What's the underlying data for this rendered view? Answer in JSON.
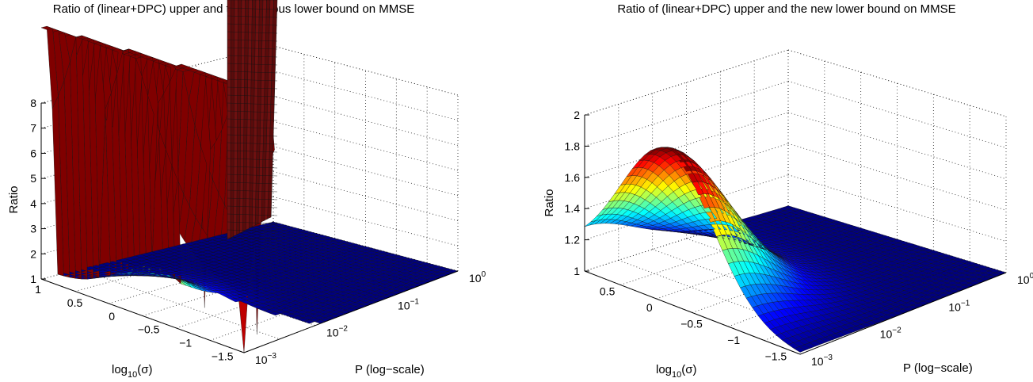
{
  "figure": {
    "charts": [
      {
        "title": "Ratio of (linear+DPC) upper and the previous lower bound on MMSE",
        "xlabel": "P (log−scale)",
        "ylabel_parts": [
          "log",
          "10",
          "(σ)"
        ],
        "zlabel": "Ratio",
        "z_ticks": [
          "1",
          "2",
          "3",
          "4",
          "5",
          "6",
          "7",
          "8"
        ],
        "sigma_ticks": [
          "1",
          "0.5",
          "0",
          "−0.5",
          "−1",
          "−1.5"
        ],
        "p_ticks": [
          [
            "10",
            "−3"
          ],
          [
            "10",
            "−2"
          ],
          [
            "10",
            "−1"
          ],
          [
            "10",
            "0"
          ]
        ]
      },
      {
        "title": "Ratio of (linear+DPC) upper and the new lower bound on MMSE",
        "xlabel": "P (log−scale)",
        "ylabel_parts": [
          "log",
          "10",
          "(σ)"
        ],
        "zlabel": "Ratio",
        "z_ticks": [
          "1",
          "1.2",
          "1.4",
          "1.6",
          "1.8",
          "2"
        ],
        "sigma_ticks": [
          "0.5",
          "0",
          "−0.5",
          "−1",
          "−1.5"
        ],
        "p_ticks": [
          [
            "10",
            "−3"
          ],
          [
            "10",
            "−2"
          ],
          [
            "10",
            "−1"
          ],
          [
            "10",
            "0"
          ]
        ]
      }
    ]
  },
  "chart_data": [
    {
      "type": "surface",
      "title": "Ratio of (linear+DPC) upper and the previous lower bound on MMSE",
      "x_axis": "P (log−scale)",
      "y_axis": "log10(σ)",
      "z_axis": "Ratio",
      "x_range_log10": [
        -3,
        0
      ],
      "y_range": [
        -1.6,
        1
      ],
      "z_range": [
        1,
        8
      ],
      "colormap": "jet",
      "grid": true,
      "shape": "ratio near 1 across most of domain, rising to about 3 around log10(sigma) between -0.5 and 0.5 at low power, diverging steeply above 8 along a ridge near log10(P) about -2.2 to -2.5; no surface for small sigma at higher power",
      "sample_points": [
        {
          "log10_P": -3,
          "log10_sigma": 1,
          "ratio": 1.0
        },
        {
          "log10_P": -3,
          "log10_sigma": 0,
          "ratio": 2.4
        },
        {
          "log10_P": -2.7,
          "log10_sigma": 0,
          "ratio": 3.0
        },
        {
          "log10_P": -3,
          "log10_sigma": -1.5,
          "ratio": 1.2
        },
        {
          "log10_P": -2.3,
          "log10_sigma": 0,
          "ratio": 8.0
        },
        {
          "log10_P": 0,
          "log10_sigma": 1,
          "ratio": 1.0
        }
      ]
    },
    {
      "type": "surface",
      "title": "Ratio of (linear+DPC) upper and the new lower bound on MMSE",
      "x_axis": "P (log−scale)",
      "y_axis": "log10(σ)",
      "z_axis": "Ratio",
      "x_range_log10": [
        -3,
        0
      ],
      "y_range": [
        -1.6,
        1
      ],
      "z_range": [
        1,
        2
      ],
      "colormap": "jet",
      "grid": true,
      "shape": "single smooth peak of about 1.9 near log10(P) about -3 to -2.5 and log10(sigma) about 0.3, decaying to 1 elsewhere",
      "sample_points": [
        {
          "log10_P": -3,
          "log10_sigma": 1,
          "ratio": 1.1
        },
        {
          "log10_P": -3,
          "log10_sigma": 0.3,
          "ratio": 1.9
        },
        {
          "log10_P": -2.5,
          "log10_sigma": 0,
          "ratio": 1.6
        },
        {
          "log10_P": -3,
          "log10_sigma": -1.5,
          "ratio": 1.1
        },
        {
          "log10_P": -1,
          "log10_sigma": 0,
          "ratio": 1.0
        },
        {
          "log10_P": 0,
          "log10_sigma": 1,
          "ratio": 1.0
        }
      ]
    }
  ]
}
